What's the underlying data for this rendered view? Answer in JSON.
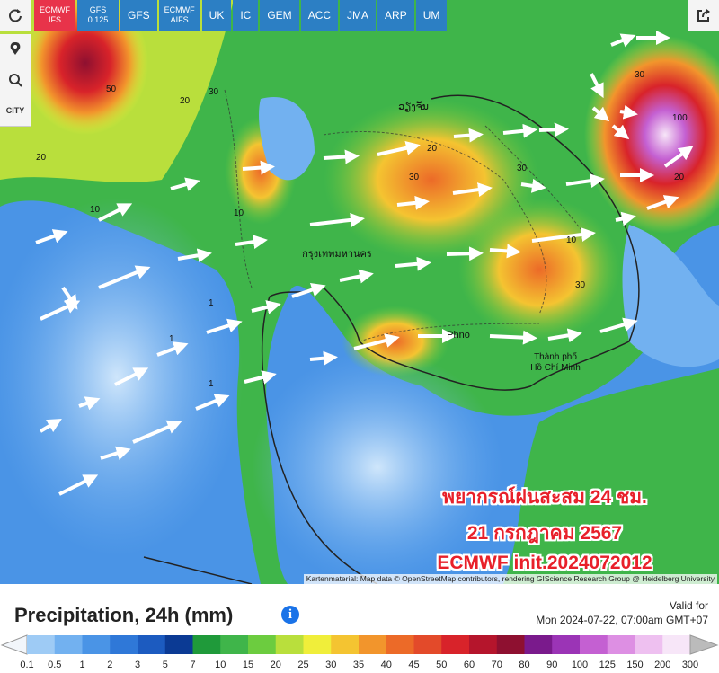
{
  "toolbar": {
    "models": [
      "ECMWF IFS",
      "GFS 0.125",
      "GFS",
      "ECMWF AIFS",
      "UK",
      "IC",
      "GEM",
      "ACC",
      "JMA",
      "ARP",
      "UM"
    ],
    "side_buttons": {
      "city": "CITY"
    }
  },
  "map": {
    "place_labels": [
      "ວຽງຈັນ",
      "กรุงเทพมหานคร",
      "Phno",
      "Thành phố Hồ Chí Minh"
    ],
    "contour_labels": [
      50,
      20,
      10,
      30,
      20,
      10,
      30,
      20,
      30,
      30,
      100,
      30,
      20,
      1,
      1,
      1,
      10
    ],
    "overlay": [
      "พยากรณ์ฝนสะสม 24 ชม.",
      "21 กรกฎาคม 2567",
      "ECMWF init.2024072012"
    ],
    "attribution": "Kartenmaterial: Map data © OpenStreetMap contributors, rendering GIScience Research Group @ Heidelberg University"
  },
  "legend": {
    "title": "Precipitation, 24h (mm)",
    "valid_label": "Valid for",
    "valid_time": "Mon 2024-07-22, 07:00am GMT+07",
    "labels": [
      0.1,
      0.5,
      1,
      2,
      3,
      5,
      7,
      10,
      15,
      20,
      25,
      30,
      35,
      40,
      45,
      50,
      60,
      70,
      80,
      90,
      100,
      125,
      150,
      200,
      300
    ],
    "colors": [
      "#9ecbf5",
      "#72b1f0",
      "#4a94e6",
      "#2f78d8",
      "#1c5bc0",
      "#0b3a94",
      "#1f9a3a",
      "#3fb54a",
      "#6ccc3f",
      "#b9df3c",
      "#f0ee3a",
      "#f4c431",
      "#f2952c",
      "#ec6a28",
      "#e34a2a",
      "#d8232a",
      "#b5152c",
      "#8e1030",
      "#7a1a8c",
      "#9b34b6",
      "#c460d2",
      "#dd8fe3",
      "#eec0f0",
      "#f7e6f8"
    ]
  }
}
